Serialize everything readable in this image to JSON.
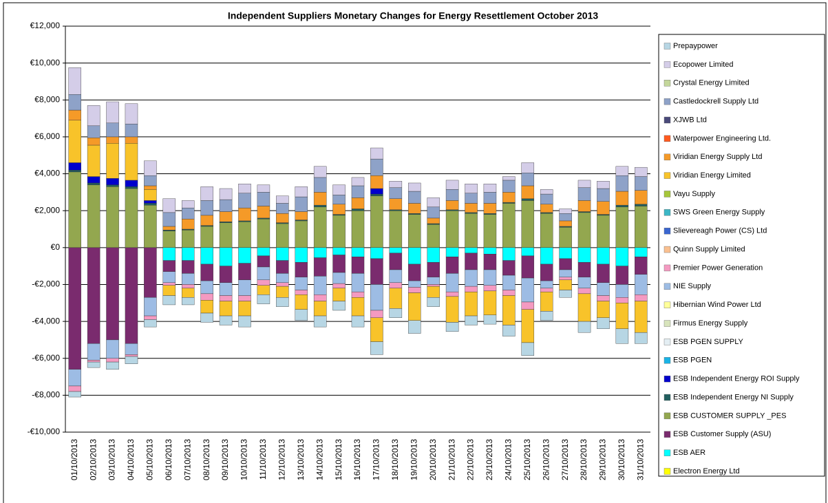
{
  "chart_data": {
    "type": "stacked_bar",
    "title": "Independent Suppliers Monetary Changes for Energy Resettlement October 2013",
    "categories": [
      "01/10/2013",
      "02/10/2013",
      "03/10/2013",
      "04/10/2013",
      "05/10/2013",
      "06/10/2013",
      "07/10/2013",
      "08/10/2013",
      "09/10/2013",
      "10/10/2013",
      "11/10/2013",
      "12/10/2013",
      "13/10/2013",
      "14/10/2013",
      "15/10/2013",
      "16/10/2013",
      "17/10/2013",
      "18/10/2013",
      "19/10/2013",
      "20/10/2013",
      "21/10/2013",
      "22/10/2013",
      "23/10/2013",
      "24/10/2013",
      "25/10/2013",
      "26/10/2013",
      "27/10/2013",
      "28/10/2013",
      "29/10/2013",
      "30/10/2013",
      "31/10/2013"
    ],
    "ylim": [
      -10000,
      12000
    ],
    "yticks": [
      {
        "value": 12000,
        "label": "€12,000"
      },
      {
        "value": 10000,
        "label": "€10,000"
      },
      {
        "value": 8000,
        "label": "€8,000"
      },
      {
        "value": 6000,
        "label": "€6,000"
      },
      {
        "value": 4000,
        "label": "€4,000"
      },
      {
        "value": 2000,
        "label": "€2,000"
      },
      {
        "value": 0,
        "label": "€0"
      },
      {
        "value": -2000,
        "label": "-€2,000"
      },
      {
        "value": -4000,
        "label": "-€4,000"
      },
      {
        "value": -6000,
        "label": "-€6,000"
      },
      {
        "value": -8000,
        "label": "-€8,000"
      },
      {
        "value": -10000,
        "label": "-€10,000"
      }
    ],
    "grid": true,
    "legend": "right",
    "series": [
      {
        "name": "Prepaypower",
        "color": "#b7d6e4",
        "values": [
          -300,
          -300,
          -400,
          -400,
          -400,
          -500,
          -400,
          -500,
          -500,
          -600,
          -500,
          -500,
          -600,
          -600,
          -500,
          -600,
          -700,
          -500,
          -700,
          -500,
          -500,
          -500,
          -500,
          -600,
          -700,
          -500,
          -400,
          -600,
          -600,
          -800,
          -600
        ]
      },
      {
        "name": "Ecopower Limited",
        "color": "#d4cde8",
        "values": [
          1450,
          1100,
          1150,
          1100,
          800,
          750,
          400,
          750,
          600,
          500,
          400,
          400,
          550,
          600,
          550,
          450,
          600,
          350,
          450,
          500,
          500,
          500,
          450,
          200,
          550,
          250,
          250,
          400,
          400,
          500,
          500
        ]
      },
      {
        "name": "Crystal Energy Limited",
        "color": "#c4d79b",
        "values": [
          0,
          0,
          0,
          0,
          0,
          0,
          0,
          0,
          0,
          0,
          0,
          0,
          0,
          0,
          0,
          0,
          0,
          0,
          0,
          0,
          0,
          0,
          0,
          0,
          0,
          0,
          0,
          0,
          0,
          0,
          0
        ]
      },
      {
        "name": "Castledockrell Supply Ltd",
        "color": "#8ea2c8",
        "values": [
          850,
          650,
          750,
          700,
          550,
          750,
          600,
          800,
          650,
          800,
          750,
          550,
          800,
          800,
          500,
          650,
          900,
          600,
          650,
          600,
          600,
          550,
          600,
          650,
          700,
          550,
          400,
          700,
          700,
          850,
          750
        ]
      },
      {
        "name": "XJWB Ltd",
        "color": "#4a4a7a",
        "values": [
          0,
          0,
          0,
          0,
          0,
          0,
          0,
          0,
          0,
          0,
          0,
          0,
          0,
          0,
          0,
          0,
          0,
          0,
          0,
          0,
          0,
          0,
          0,
          0,
          0,
          0,
          0,
          0,
          0,
          0,
          0
        ]
      },
      {
        "name": "Waterpower Engineering Ltd.",
        "color": "#ff5a1f",
        "values": [
          0,
          0,
          0,
          0,
          0,
          0,
          0,
          0,
          0,
          0,
          0,
          0,
          0,
          0,
          0,
          0,
          0,
          0,
          0,
          0,
          0,
          0,
          0,
          0,
          0,
          0,
          0,
          0,
          0,
          0,
          0
        ]
      },
      {
        "name": "Viridian Energy Supply Ltd",
        "color": "#f59a28",
        "values": [
          550,
          400,
          350,
          350,
          200,
          200,
          550,
          550,
          550,
          700,
          650,
          500,
          450,
          700,
          550,
          600,
          700,
          600,
          550,
          300,
          500,
          500,
          550,
          550,
          700,
          450,
          300,
          600,
          700,
          750,
          750
        ]
      },
      {
        "name": "Viridian Energy Limited",
        "color": "#f8c32a",
        "values": [
          2300,
          1700,
          1900,
          2000,
          600,
          -550,
          -500,
          -700,
          -800,
          -800,
          -500,
          -600,
          -800,
          -800,
          -700,
          -1000,
          -1300,
          -1100,
          -1500,
          -600,
          -1400,
          -1300,
          -1300,
          -1600,
          -1800,
          -1050,
          -550,
          -1500,
          -900,
          -1400,
          -1700
        ]
      },
      {
        "name": "Vayu Supply",
        "color": "#a6c63a",
        "values": [
          0,
          0,
          0,
          0,
          0,
          0,
          0,
          0,
          0,
          0,
          0,
          0,
          0,
          0,
          0,
          0,
          0,
          0,
          0,
          0,
          0,
          0,
          0,
          0,
          0,
          0,
          0,
          0,
          0,
          0,
          0
        ]
      },
      {
        "name": "SWS Green Energy Supply",
        "color": "#3cb7c6",
        "values": [
          0,
          0,
          0,
          0,
          0,
          0,
          0,
          0,
          0,
          0,
          0,
          0,
          0,
          0,
          0,
          0,
          0,
          0,
          0,
          0,
          0,
          0,
          0,
          0,
          0,
          0,
          0,
          0,
          0,
          0,
          0
        ]
      },
      {
        "name": "Slievereagh Power (CS) Ltd",
        "color": "#3a66d0",
        "values": [
          0,
          0,
          0,
          0,
          0,
          0,
          0,
          0,
          0,
          0,
          0,
          0,
          0,
          0,
          0,
          0,
          0,
          0,
          0,
          0,
          0,
          0,
          0,
          0,
          0,
          0,
          0,
          0,
          0,
          0,
          0
        ]
      },
      {
        "name": "Quinn Supply Limited",
        "color": "#fac090",
        "values": [
          0,
          0,
          0,
          0,
          0,
          0,
          0,
          0,
          0,
          0,
          0,
          0,
          0,
          0,
          0,
          0,
          0,
          0,
          0,
          0,
          0,
          0,
          0,
          0,
          0,
          0,
          0,
          0,
          0,
          0,
          0
        ]
      },
      {
        "name": "Premier Power Generation",
        "color": "#f49ac1",
        "values": [
          -300,
          -100,
          -200,
          -100,
          -200,
          -150,
          -200,
          -350,
          -300,
          -300,
          -300,
          -200,
          -250,
          -350,
          -250,
          -300,
          -400,
          -300,
          -300,
          -100,
          -250,
          -300,
          -300,
          -300,
          -400,
          -200,
          -150,
          -300,
          -300,
          -300,
          -350
        ]
      },
      {
        "name": "NIE Supply",
        "color": "#9dbce4",
        "values": [
          -900,
          -900,
          -1000,
          -600,
          -1000,
          -600,
          -600,
          -700,
          -700,
          -850,
          -700,
          -500,
          -700,
          -1000,
          -600,
          -1000,
          -1400,
          -700,
          -350,
          -400,
          -1000,
          -900,
          -850,
          -800,
          -1300,
          -400,
          -400,
          -600,
          -700,
          -700,
          -1100
        ]
      },
      {
        "name": "Hibernian Wind Power Ltd",
        "color": "#ffff99",
        "values": [
          0,
          0,
          0,
          0,
          0,
          0,
          0,
          0,
          0,
          0,
          0,
          0,
          0,
          0,
          0,
          0,
          0,
          0,
          0,
          0,
          0,
          0,
          0,
          0,
          0,
          0,
          0,
          0,
          0,
          0,
          0
        ]
      },
      {
        "name": "Firmus Energy Supply",
        "color": "#d8e4bc",
        "values": [
          0,
          0,
          0,
          0,
          0,
          0,
          0,
          0,
          0,
          0,
          0,
          0,
          0,
          0,
          0,
          0,
          0,
          0,
          0,
          0,
          0,
          0,
          0,
          0,
          0,
          0,
          0,
          0,
          0,
          0,
          0
        ]
      },
      {
        "name": "ESB PGEN SUPPLY",
        "color": "#e4eef3",
        "values": [
          0,
          0,
          0,
          0,
          0,
          0,
          0,
          0,
          0,
          0,
          0,
          0,
          0,
          0,
          0,
          0,
          0,
          0,
          0,
          0,
          0,
          0,
          0,
          0,
          0,
          0,
          0,
          0,
          0,
          0,
          0
        ]
      },
      {
        "name": "ESB PGEN",
        "color": "#1ab3e6",
        "values": [
          0,
          0,
          0,
          0,
          0,
          0,
          0,
          0,
          0,
          0,
          0,
          0,
          0,
          0,
          0,
          0,
          0,
          0,
          0,
          0,
          0,
          0,
          0,
          0,
          0,
          0,
          0,
          0,
          0,
          0,
          0
        ]
      },
      {
        "name": "ESB Independent Energy ROI Supply",
        "color": "#0000cc",
        "values": [
          400,
          350,
          350,
          350,
          150,
          0,
          0,
          0,
          0,
          0,
          0,
          0,
          0,
          0,
          0,
          0,
          300,
          0,
          0,
          0,
          0,
          0,
          0,
          0,
          0,
          0,
          0,
          0,
          0,
          0,
          0
        ]
      },
      {
        "name": "ESB Independent Energy NI Supply",
        "color": "#215f5f",
        "values": [
          100,
          100,
          100,
          100,
          100,
          50,
          50,
          50,
          50,
          50,
          50,
          50,
          50,
          100,
          50,
          100,
          100,
          50,
          50,
          50,
          50,
          50,
          50,
          50,
          100,
          50,
          50,
          50,
          50,
          100,
          100
        ]
      },
      {
        "name": "ESB CUSTOMER  SUPPLY _PES",
        "color": "#93a74f",
        "values": [
          4100,
          3400,
          3300,
          3200,
          2300,
          900,
          950,
          1150,
          1350,
          1400,
          1550,
          1300,
          1450,
          2200,
          1750,
          2000,
          2800,
          2000,
          1800,
          1250,
          2000,
          1850,
          1800,
          2400,
          2550,
          1850,
          1100,
          1900,
          1750,
          2200,
          2250
        ]
      },
      {
        "name": "ESB Customer Supply (ASU)",
        "color": "#7a2b6e",
        "values": [
          -6600,
          -5200,
          -5000,
          -5200,
          -2700,
          -600,
          -700,
          -900,
          -900,
          -900,
          -600,
          -700,
          -800,
          -1000,
          -950,
          -900,
          -1400,
          -900,
          -900,
          -800,
          -900,
          -900,
          -850,
          -800,
          -1200,
          -900,
          -600,
          -800,
          -1000,
          -1000,
          -950
        ]
      },
      {
        "name": "ESB AER",
        "color": "#00ffff",
        "values": [
          0,
          0,
          0,
          0,
          0,
          -700,
          -700,
          -900,
          -1000,
          -850,
          -450,
          -700,
          -800,
          -550,
          -400,
          -500,
          -600,
          -300,
          -900,
          -800,
          -500,
          -300,
          -350,
          -700,
          -450,
          -900,
          -600,
          -800,
          -900,
          -1000,
          -500
        ]
      },
      {
        "name": "Electron Energy Ltd",
        "color": "#ffff00",
        "values": [
          0,
          0,
          0,
          0,
          0,
          0,
          0,
          0,
          0,
          0,
          0,
          0,
          0,
          0,
          0,
          0,
          0,
          0,
          0,
          0,
          0,
          0,
          0,
          0,
          0,
          0,
          0,
          0,
          0,
          0,
          0
        ]
      }
    ]
  }
}
